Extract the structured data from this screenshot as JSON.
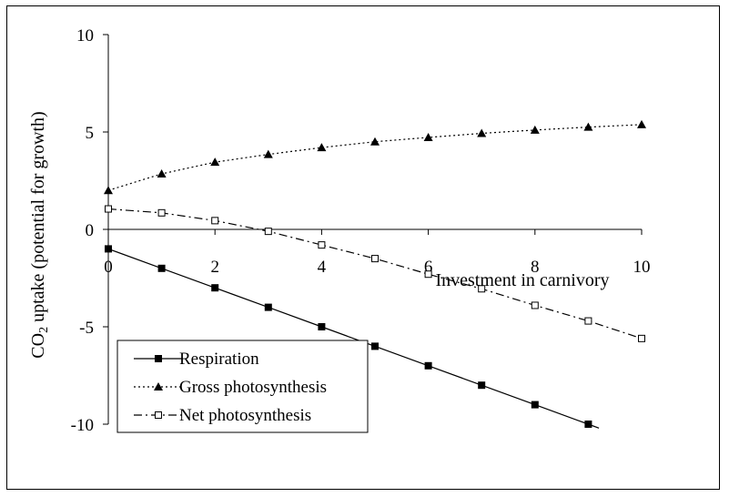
{
  "chart_data": {
    "type": "line",
    "title": "",
    "xlabel": "Investment in carnivory",
    "ylabel_main": "CO",
    "ylabel_sub": "2",
    "ylabel_rest": " uptake (potential for growth)",
    "xlim": [
      0,
      10
    ],
    "ylim": [
      -10,
      10
    ],
    "x_ticks": [
      0,
      2,
      4,
      6,
      8,
      10
    ],
    "y_ticks": [
      10,
      5,
      0,
      -5,
      -10
    ],
    "grid": false,
    "legend_position": "bottom-left",
    "series": [
      {
        "name": "Respiration",
        "marker": "filled-square",
        "line_style": "solid",
        "x": [
          0,
          1,
          2,
          3,
          4,
          5,
          6,
          7,
          8,
          9
        ],
        "y": [
          -1,
          -2,
          -3,
          -4,
          -5,
          -6,
          -7,
          -8,
          -9,
          -10
        ],
        "line_end_x": 9.2
      },
      {
        "name": "Gross photosynthesis",
        "marker": "filled-triangle",
        "line_style": "dotted",
        "x": [
          0,
          1,
          2,
          3,
          4,
          5,
          6,
          7,
          8,
          9,
          10
        ],
        "y": [
          2.0,
          2.85,
          3.45,
          3.85,
          4.2,
          4.5,
          4.72,
          4.93,
          5.1,
          5.25,
          5.38
        ]
      },
      {
        "name": "Net photosynthesis",
        "marker": "open-square",
        "line_style": "dash-dot",
        "x": [
          0,
          1,
          2,
          3,
          4,
          5,
          6,
          7,
          8,
          9,
          10
        ],
        "y": [
          1.05,
          0.85,
          0.45,
          -0.1,
          -0.8,
          -1.5,
          -2.3,
          -3.05,
          -3.9,
          -4.7,
          -5.6
        ]
      }
    ]
  }
}
